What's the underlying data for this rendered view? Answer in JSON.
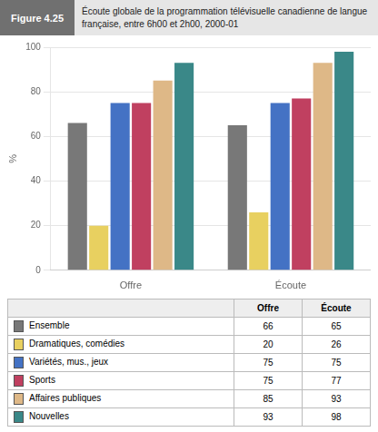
{
  "chart_data": {
    "type": "bar",
    "subtitle": "Figure 4.25",
    "title": "Écoute globale de la programmation télévisuelle canadienne de langue\nfrançaise, entre 6h00 et 2h00, 2000-01",
    "categories": [
      "Offre",
      "Écoute"
    ],
    "series": [
      {
        "name": "Ensemble",
        "color": "#787878",
        "values": [
          66,
          65
        ]
      },
      {
        "name": "Dramatiques, comédies",
        "color": "#E8D060",
        "values": [
          20,
          26
        ]
      },
      {
        "name": "Variétés, mus., jeux",
        "color": "#4472C4",
        "values": [
          75,
          75
        ]
      },
      {
        "name": "Sports",
        "color": "#C04060",
        "values": [
          75,
          77
        ]
      },
      {
        "name": "Affaires publiques",
        "color": "#DEB887",
        "values": [
          85,
          93
        ]
      },
      {
        "name": "Nouvelles",
        "color": "#3A8888",
        "values": [
          93,
          98
        ]
      }
    ],
    "y_label": "%",
    "ylim": [
      0,
      100
    ],
    "yticks": [
      0,
      20,
      40,
      60,
      80,
      100
    ],
    "grid": true,
    "legend": "bottom"
  }
}
